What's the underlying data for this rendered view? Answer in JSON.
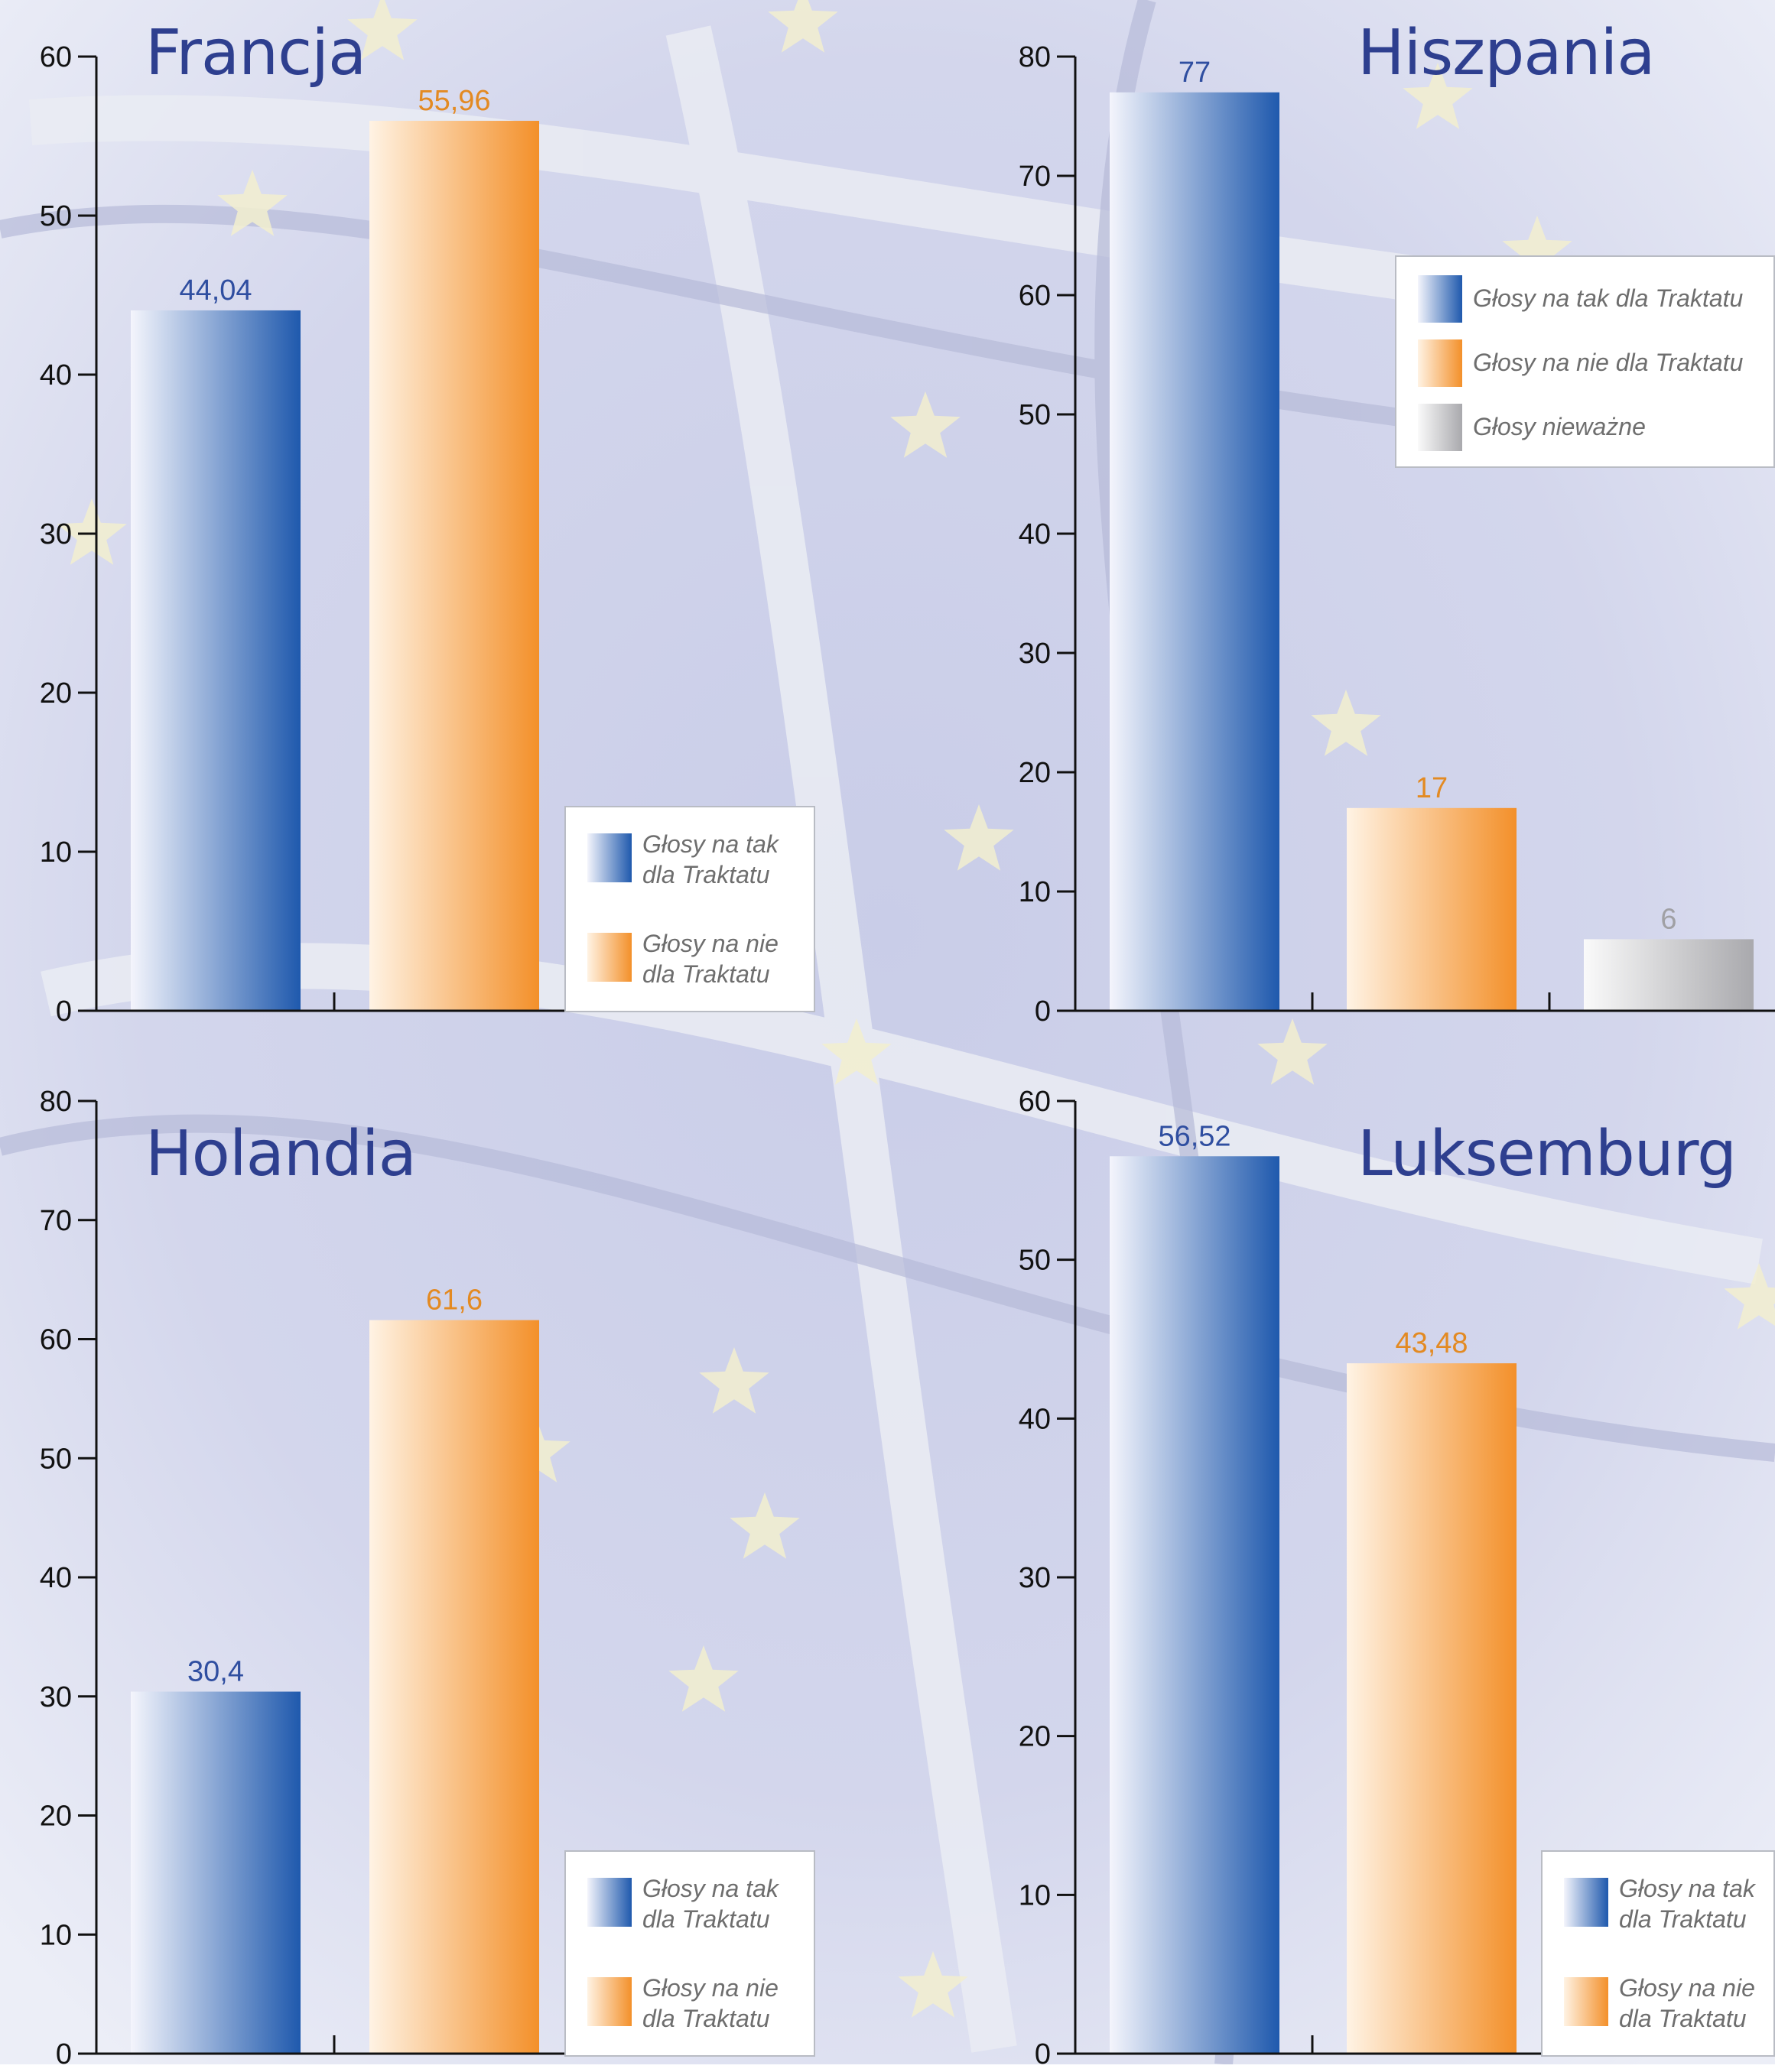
{
  "colors": {
    "tak": "#1f59ad",
    "nie": "#f3902a",
    "niewazne": "#a9a9ad",
    "title": "#2e3f8f",
    "tak_label": "#2f4ea0",
    "nie_label": "#e38a22",
    "niewazne_label": "#a0a0a4"
  },
  "chart_data": [
    {
      "type": "bar",
      "title": "Francja",
      "ylim": [
        0,
        60
      ],
      "yticks": [
        "0",
        "10",
        "20",
        "30",
        "40",
        "50",
        "60"
      ],
      "categories": [
        "Głosy na tak dla Traktatu",
        "Głosy na nie dla Traktatu"
      ],
      "values": [
        44.04,
        55.96
      ],
      "value_labels": [
        "44,04",
        "55,96"
      ],
      "legend": {
        "placement": "bottom-right",
        "entries": [
          {
            "label": "Głosy na tak dla Traktatu",
            "lines": [
              "Głosy na tak",
              "dla Traktatu"
            ]
          },
          {
            "label": "Głosy na nie dla Traktatu",
            "lines": [
              "Głosy na nie",
              "dla Traktatu"
            ]
          }
        ]
      }
    },
    {
      "type": "bar",
      "title": "Hiszpania",
      "ylim": [
        0,
        80
      ],
      "yticks": [
        "0",
        "10",
        "20",
        "30",
        "40",
        "50",
        "60",
        "70",
        "80"
      ],
      "categories": [
        "Głosy na tak dla Traktatu",
        "Głosy na nie dla Traktatu",
        "Głosy nieważne"
      ],
      "values": [
        77,
        17,
        6
      ],
      "value_labels": [
        "77",
        "17",
        "6"
      ],
      "legend": {
        "placement": "top-right",
        "entries": [
          {
            "label": "Głosy na tak dla Traktatu",
            "lines": [
              "Głosy na tak dla Traktatu"
            ]
          },
          {
            "label": "Głosy na nie dla Traktatu",
            "lines": [
              "Głosy na nie dla Traktatu"
            ]
          },
          {
            "label": "Głosy nieważne",
            "lines": [
              "Głosy nieważne"
            ]
          }
        ]
      }
    },
    {
      "type": "bar",
      "title": "Holandia",
      "ylim": [
        0,
        80
      ],
      "yticks": [
        "0",
        "10",
        "20",
        "30",
        "40",
        "50",
        "60",
        "70",
        "80"
      ],
      "categories": [
        "Głosy na tak dla Traktatu",
        "Głosy na nie dla Traktatu"
      ],
      "values": [
        30.4,
        61.6
      ],
      "value_labels": [
        "30,4",
        "61,6"
      ],
      "legend": {
        "placement": "bottom-right",
        "entries": [
          {
            "label": "Głosy na tak dla Traktatu",
            "lines": [
              "Głosy na tak",
              "dla Traktatu"
            ]
          },
          {
            "label": "Głosy na nie dla Traktatu",
            "lines": [
              "Głosy na nie",
              "dla Traktatu"
            ]
          }
        ]
      }
    },
    {
      "type": "bar",
      "title": "Luksemburg",
      "ylim": [
        0,
        60
      ],
      "yticks": [
        "0",
        "10",
        "20",
        "30",
        "40",
        "50",
        "60"
      ],
      "categories": [
        "Głosy na tak dla Traktatu",
        "Głosy na nie dla Traktatu"
      ],
      "values": [
        56.52,
        43.48
      ],
      "value_labels": [
        "56,52",
        "43,48"
      ],
      "legend": {
        "placement": "bottom-right",
        "entries": [
          {
            "label": "Głosy na tak dla Traktatu",
            "lines": [
              "Głosy na tak",
              "dla Traktatu"
            ]
          },
          {
            "label": "Głosy na nie dla Traktatu",
            "lines": [
              "Głosy na nie",
              "dla Traktatu"
            ]
          }
        ]
      }
    }
  ]
}
